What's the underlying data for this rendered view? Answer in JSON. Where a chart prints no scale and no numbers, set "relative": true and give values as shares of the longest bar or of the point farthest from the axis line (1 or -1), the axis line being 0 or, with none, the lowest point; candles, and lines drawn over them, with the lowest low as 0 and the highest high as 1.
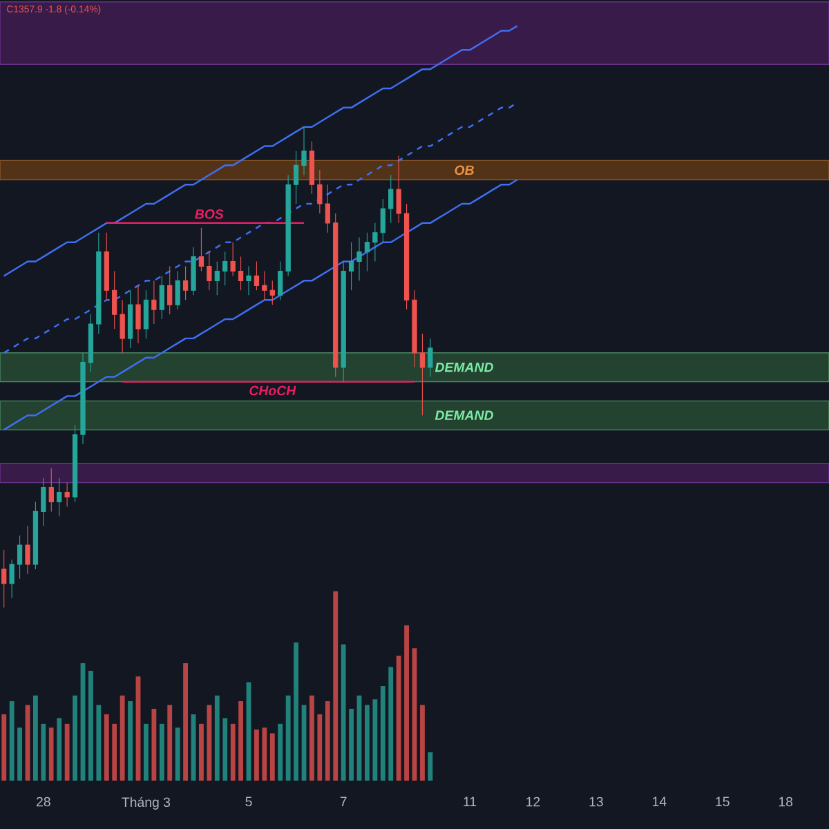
{
  "chart_data": [
    {
      "type": "candlestick",
      "relative": true,
      "categories": [
        null,
        null,
        null,
        null,
        null,
        null,
        null,
        null,
        null,
        null,
        null,
        null,
        null,
        null,
        null,
        null,
        null,
        null,
        null,
        null,
        null,
        null,
        null,
        null,
        null,
        null,
        null,
        null,
        null,
        null,
        null,
        null,
        null,
        null,
        null,
        null,
        null,
        null,
        null,
        null,
        null,
        null,
        null,
        null,
        null,
        null,
        null,
        null,
        null,
        null,
        null,
        null,
        null,
        null,
        null,
        null,
        null,
        null,
        null,
        null,
        null,
        null,
        null,
        null,
        null,
        null,
        null,
        null,
        null,
        null,
        null,
        null,
        null,
        null,
        null,
        null,
        null,
        null,
        null,
        null,
        null,
        null,
        null,
        null,
        null,
        null,
        null,
        null,
        null,
        null,
        null,
        null,
        null,
        null,
        null,
        null,
        null,
        null,
        null,
        null,
        null,
        null,
        null,
        null,
        null
      ],
      "ohlc": [
        [
          0.08,
          0.12,
          0.0,
          0.05
        ],
        [
          0.05,
          0.1,
          0.02,
          0.09
        ],
        [
          0.09,
          0.15,
          0.06,
          0.13
        ],
        [
          0.13,
          0.17,
          0.07,
          0.09
        ],
        [
          0.09,
          0.22,
          0.08,
          0.2
        ],
        [
          0.2,
          0.27,
          0.17,
          0.25
        ],
        [
          0.25,
          0.29,
          0.2,
          0.22
        ],
        [
          0.22,
          0.27,
          0.19,
          0.24
        ],
        [
          0.24,
          0.26,
          0.21,
          0.23
        ],
        [
          0.23,
          0.38,
          0.22,
          0.36
        ],
        [
          0.36,
          0.53,
          0.34,
          0.51
        ],
        [
          0.51,
          0.61,
          0.49,
          0.59
        ],
        [
          0.59,
          0.78,
          0.57,
          0.74
        ],
        [
          0.74,
          0.78,
          0.64,
          0.66
        ],
        [
          0.66,
          0.7,
          0.58,
          0.61
        ],
        [
          0.61,
          0.64,
          0.53,
          0.56
        ],
        [
          0.56,
          0.66,
          0.54,
          0.63
        ],
        [
          0.63,
          0.67,
          0.55,
          0.58
        ],
        [
          0.58,
          0.66,
          0.56,
          0.64
        ],
        [
          0.64,
          0.68,
          0.59,
          0.62
        ],
        [
          0.62,
          0.69,
          0.6,
          0.67
        ],
        [
          0.67,
          0.71,
          0.61,
          0.63
        ],
        [
          0.63,
          0.7,
          0.62,
          0.68
        ],
        [
          0.68,
          0.71,
          0.64,
          0.66
        ],
        [
          0.66,
          0.75,
          0.65,
          0.73
        ],
        [
          0.73,
          0.79,
          0.7,
          0.71
        ],
        [
          0.71,
          0.74,
          0.66,
          0.68
        ],
        [
          0.68,
          0.72,
          0.65,
          0.7
        ],
        [
          0.7,
          0.74,
          0.67,
          0.72
        ],
        [
          0.72,
          0.76,
          0.69,
          0.7
        ],
        [
          0.7,
          0.73,
          0.66,
          0.68
        ],
        [
          0.68,
          0.71,
          0.65,
          0.69
        ],
        [
          0.69,
          0.72,
          0.66,
          0.67
        ],
        [
          0.67,
          0.7,
          0.64,
          0.66
        ],
        [
          0.66,
          0.68,
          0.63,
          0.65
        ],
        [
          0.65,
          0.72,
          0.64,
          0.7
        ],
        [
          0.7,
          0.9,
          0.69,
          0.88
        ],
        [
          0.88,
          0.95,
          0.84,
          0.92
        ],
        [
          0.92,
          1.0,
          0.9,
          0.95
        ],
        [
          0.95,
          0.97,
          0.86,
          0.88
        ],
        [
          0.88,
          0.91,
          0.82,
          0.84
        ],
        [
          0.84,
          0.88,
          0.78,
          0.8
        ],
        [
          0.8,
          0.82,
          0.48,
          0.5
        ],
        [
          0.5,
          0.72,
          0.47,
          0.7
        ],
        [
          0.7,
          0.76,
          0.66,
          0.72
        ],
        [
          0.72,
          0.77,
          0.68,
          0.74
        ],
        [
          0.74,
          0.78,
          0.7,
          0.76
        ],
        [
          0.76,
          0.8,
          0.72,
          0.78
        ],
        [
          0.78,
          0.85,
          0.76,
          0.83
        ],
        [
          0.83,
          0.9,
          0.8,
          0.87
        ],
        [
          0.87,
          0.94,
          0.8,
          0.82
        ],
        [
          0.82,
          0.84,
          0.62,
          0.64
        ],
        [
          0.64,
          0.66,
          0.5,
          0.53
        ],
        [
          0.53,
          0.57,
          0.4,
          0.5
        ],
        [
          0.5,
          0.56,
          0.48,
          0.54
        ],
        null,
        null,
        null,
        null,
        null,
        null,
        null,
        null,
        null,
        null,
        null,
        null,
        null,
        null,
        null,
        null,
        null,
        null,
        null,
        null,
        null,
        null,
        null,
        null,
        null,
        null,
        null,
        null,
        null,
        null,
        null,
        null,
        null,
        null,
        null,
        null,
        null,
        null,
        null,
        null,
        null,
        null,
        null,
        null,
        null,
        null,
        null,
        null,
        null,
        null
      ],
      "series": [
        {
          "type": "line",
          "color": "#3f6ff0",
          "values": [
            0.69,
            0.7,
            0.71,
            0.72,
            0.72,
            0.73,
            0.74,
            0.75,
            0.76,
            0.76,
            0.77,
            0.78,
            0.79,
            0.8,
            0.8,
            0.81,
            0.82,
            0.83,
            0.84,
            0.84,
            0.85,
            0.86,
            0.87,
            0.88,
            0.88,
            0.89,
            0.9,
            0.91,
            0.92,
            0.92,
            0.93,
            0.94,
            0.95,
            0.96,
            0.96,
            0.97,
            0.98,
            0.99,
            1.0,
            1.0,
            1.01,
            1.02,
            1.03,
            1.04,
            1.04,
            1.05,
            1.06,
            1.07,
            1.08,
            1.08,
            1.09,
            1.1,
            1.11,
            1.12,
            1.12,
            1.13,
            1.14,
            1.15,
            1.16,
            1.16,
            1.17,
            1.18,
            1.19,
            1.2,
            1.2,
            1.21,
            null,
            null,
            null,
            null,
            null,
            null,
            null,
            null,
            null,
            null,
            null,
            null,
            null,
            null,
            null,
            null,
            null,
            null,
            null,
            null,
            null,
            null,
            null,
            null,
            null,
            null,
            null,
            null,
            null,
            null,
            null,
            null,
            null,
            null,
            null,
            null,
            null,
            null,
            null
          ]
        },
        {
          "type": "line",
          "color": "#3f6ff0",
          "values": [
            0.37,
            0.38,
            0.39,
            0.4,
            0.4,
            0.41,
            0.42,
            0.43,
            0.44,
            0.44,
            0.45,
            0.46,
            0.47,
            0.48,
            0.48,
            0.49,
            0.5,
            0.51,
            0.52,
            0.52,
            0.53,
            0.54,
            0.55,
            0.56,
            0.56,
            0.57,
            0.58,
            0.59,
            0.6,
            0.6,
            0.61,
            0.62,
            0.63,
            0.64,
            0.64,
            0.65,
            0.66,
            0.67,
            0.68,
            0.68,
            0.69,
            0.7,
            0.71,
            0.72,
            0.72,
            0.73,
            0.74,
            0.75,
            0.76,
            0.76,
            0.77,
            0.78,
            0.79,
            0.8,
            0.8,
            0.81,
            0.82,
            0.83,
            0.84,
            0.84,
            0.85,
            0.86,
            0.87,
            0.88,
            0.88,
            0.89,
            null,
            null,
            null,
            null,
            null,
            null,
            null,
            null,
            null,
            null,
            null,
            null,
            null,
            null,
            null,
            null,
            null,
            null,
            null,
            null,
            null,
            null,
            null,
            null,
            null,
            null,
            null,
            null,
            null,
            null,
            null,
            null,
            null,
            null,
            null,
            null,
            null,
            null,
            null
          ]
        },
        {
          "type": "line",
          "color": "#3f6ff0",
          "line_style": "dashed",
          "values": [
            0.53,
            0.54,
            0.55,
            0.56,
            0.56,
            0.57,
            0.58,
            0.59,
            0.6,
            0.6,
            0.61,
            0.62,
            0.63,
            0.64,
            0.64,
            0.65,
            0.66,
            0.67,
            0.68,
            0.68,
            0.69,
            0.7,
            0.71,
            0.72,
            0.72,
            0.73,
            0.74,
            0.75,
            0.76,
            0.76,
            0.77,
            0.78,
            0.79,
            0.8,
            0.8,
            0.81,
            0.82,
            0.83,
            0.84,
            0.84,
            0.85,
            0.86,
            0.87,
            0.88,
            0.88,
            0.89,
            0.9,
            0.91,
            0.92,
            0.92,
            0.93,
            0.94,
            0.95,
            0.96,
            0.96,
            0.97,
            0.98,
            0.99,
            1.0,
            1.0,
            1.01,
            1.02,
            1.03,
            1.04,
            1.04,
            1.05,
            null,
            null,
            null,
            null,
            null,
            null,
            null,
            null,
            null,
            null,
            null,
            null,
            null,
            null,
            null,
            null,
            null,
            null,
            null,
            null,
            null,
            null,
            null,
            null,
            null,
            null,
            null,
            null,
            null,
            null,
            null,
            null,
            null,
            null,
            null,
            null,
            null,
            null,
            null
          ]
        },
        {
          "type": "line",
          "name": "BOS",
          "color": "#e91e63",
          "values": [
            null,
            null,
            null,
            null,
            null,
            null,
            null,
            null,
            null,
            null,
            null,
            null,
            null,
            0.8,
            0.8,
            0.8,
            0.8,
            0.8,
            0.8,
            0.8,
            0.8,
            0.8,
            0.8,
            0.8,
            0.8,
            0.8,
            0.8,
            0.8,
            0.8,
            0.8,
            0.8,
            0.8,
            0.8,
            0.8,
            0.8,
            0.8,
            0.8,
            0.8,
            0.8,
            null,
            null,
            null,
            null,
            null,
            null,
            null,
            null,
            null,
            null,
            null,
            null,
            null,
            null,
            null,
            null,
            null,
            null,
            null,
            null,
            null,
            null,
            null,
            null,
            null,
            null,
            null,
            null,
            null,
            null,
            null,
            null,
            null,
            null,
            null,
            null,
            null,
            null,
            null,
            null,
            null,
            null,
            null,
            null,
            null,
            null,
            null,
            null,
            null,
            null,
            null,
            null,
            null,
            null,
            null,
            null,
            null,
            null,
            null,
            null,
            null,
            null,
            null,
            null,
            null,
            null
          ]
        },
        {
          "type": "line",
          "name": "CHoCH",
          "color": "#e91e63",
          "values": [
            null,
            null,
            null,
            null,
            null,
            null,
            null,
            null,
            null,
            null,
            null,
            null,
            null,
            null,
            null,
            0.47,
            0.47,
            0.47,
            0.47,
            0.47,
            0.47,
            0.47,
            0.47,
            0.47,
            0.47,
            0.47,
            0.47,
            0.47,
            0.47,
            0.47,
            0.47,
            0.47,
            0.47,
            0.47,
            0.47,
            0.47,
            0.47,
            0.47,
            0.47,
            0.47,
            0.47,
            0.47,
            0.47,
            0.47,
            0.47,
            0.47,
            0.47,
            0.47,
            0.47,
            0.47,
            0.47,
            0.47,
            0.47,
            null,
            null,
            null,
            null,
            null,
            null,
            null,
            null,
            null,
            null,
            null,
            null,
            null,
            null,
            null,
            null,
            null,
            null,
            null,
            null,
            null,
            null,
            null,
            null,
            null,
            null,
            null,
            null,
            null,
            null,
            null,
            null,
            null,
            null,
            null,
            null,
            null,
            null,
            null,
            null,
            null,
            null,
            null,
            null,
            null,
            null,
            null,
            null,
            null,
            null,
            null,
            null
          ]
        }
      ],
      "bands": [
        {
          "axis": "y",
          "from": 1.13,
          "to": 1.26,
          "color": "#391b4a"
        },
        {
          "axis": "y",
          "from": 0.89,
          "to": 0.93,
          "label": "OB",
          "color": "#523318"
        },
        {
          "axis": "y",
          "from": 0.47,
          "to": 0.53,
          "label": "DEMAND",
          "color": "#23422f"
        },
        {
          "axis": "y",
          "from": 0.37,
          "to": 0.43,
          "label": "DEMAND",
          "color": "#23422f"
        },
        {
          "axis": "y",
          "from": 0.26,
          "to": 0.3,
          "color": "#391b4a"
        }
      ],
      "annotations": [
        "C1357.9 -1.8 (-0.14%)"
      ]
    },
    {
      "type": "bar",
      "relative": true,
      "categories": [
        null,
        null,
        null,
        null,
        null,
        "28",
        null,
        null,
        null,
        null,
        null,
        null,
        null,
        null,
        null,
        null,
        null,
        null,
        "Tháng 3",
        null,
        null,
        null,
        null,
        null,
        null,
        null,
        null,
        null,
        null,
        null,
        null,
        "5",
        null,
        null,
        null,
        null,
        null,
        null,
        null,
        null,
        null,
        null,
        null,
        "7",
        null,
        null,
        null,
        null,
        null,
        null,
        null,
        null,
        null,
        null,
        null,
        null,
        null,
        null,
        null,
        "11",
        null,
        null,
        null,
        null,
        null,
        null,
        null,
        "12",
        null,
        null,
        null,
        null,
        null,
        null,
        null,
        "13",
        null,
        null,
        null,
        null,
        null,
        null,
        null,
        "14",
        null,
        null,
        null,
        null,
        null,
        null,
        null,
        "15",
        null,
        null,
        null,
        null,
        null,
        null,
        null,
        "18",
        null,
        null,
        null,
        null,
        null
      ],
      "values": [
        0.35,
        0.42,
        0.28,
        0.4,
        0.45,
        0.3,
        0.28,
        0.33,
        0.3,
        0.45,
        0.62,
        0.58,
        0.4,
        0.35,
        0.3,
        0.45,
        0.42,
        0.55,
        0.3,
        0.38,
        0.3,
        0.4,
        0.28,
        0.62,
        0.35,
        0.3,
        0.4,
        0.45,
        0.33,
        0.3,
        0.42,
        0.52,
        0.27,
        0.28,
        0.25,
        0.3,
        0.45,
        0.73,
        0.4,
        0.45,
        0.35,
        0.42,
        1.0,
        0.72,
        0.38,
        0.45,
        0.4,
        0.43,
        0.5,
        0.6,
        0.66,
        0.82,
        0.7,
        0.4,
        0.15,
        null,
        null,
        null,
        null,
        null,
        null,
        null,
        null,
        null,
        null,
        null,
        null,
        null,
        null,
        null,
        null,
        null,
        null,
        null,
        null,
        null,
        null,
        null,
        null,
        null,
        null,
        null,
        null,
        null,
        null,
        null,
        null,
        null,
        null,
        null,
        null,
        null,
        null,
        null,
        null,
        null,
        null,
        null,
        null,
        null,
        null,
        null,
        null,
        null,
        null
      ]
    }
  ]
}
